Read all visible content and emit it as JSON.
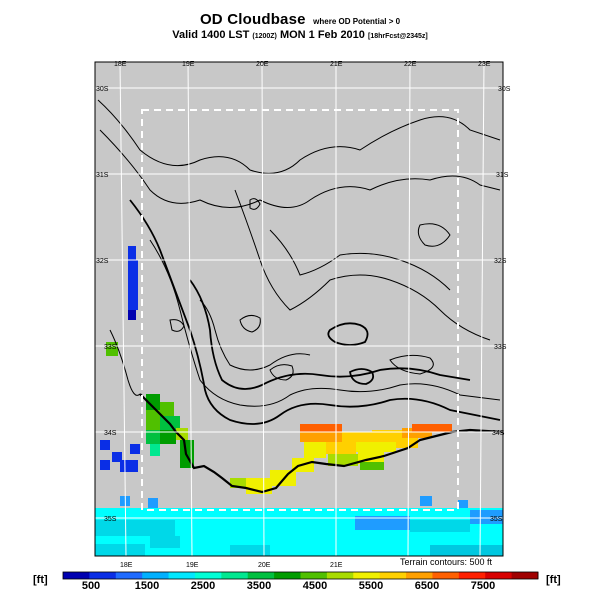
{
  "title": {
    "main": "OD Cloudbase",
    "sub": "where OD Potential > 0",
    "line2": "Valid 1400 LST",
    "line2_code": "(1200Z)",
    "line2_date": "MON 1 Feb 2010",
    "line2_tag": "[18hrFcst@2345z]"
  },
  "map": {
    "lon_top": [
      "18E",
      "19E",
      "20E",
      "21E",
      "22E",
      "23E"
    ],
    "lon_bottom": [
      "18E",
      "19E",
      "20E",
      "21E"
    ],
    "lat_left": [
      "30S",
      "31S",
      "32S",
      "33S",
      "34S",
      "35S"
    ],
    "lat_right": [
      "30S",
      "31S",
      "32S",
      "33S",
      "34S",
      "35S"
    ],
    "terrain_note": "Terrain contours: 500 ft",
    "colors": {
      "background": "#c8c8c8",
      "ocean": "#00ffff",
      "grid": "#ffffff",
      "window_box": "#ffffff"
    }
  },
  "colorbar": {
    "unit_left": "[ft]",
    "unit_right": "[ft]",
    "labels": [
      "500",
      "1500",
      "2500",
      "3500",
      "4500",
      "5500",
      "6500",
      "7500"
    ],
    "colors": [
      "#0000b0",
      "#0a2ee6",
      "#1f6bff",
      "#00b0ff",
      "#00e8ff",
      "#00ffd6",
      "#00e890",
      "#00c040",
      "#009c00",
      "#50c000",
      "#a8dc00",
      "#f0f000",
      "#ffd000",
      "#ffa000",
      "#ff6000",
      "#ff2000",
      "#d80000",
      "#a00000"
    ]
  }
}
